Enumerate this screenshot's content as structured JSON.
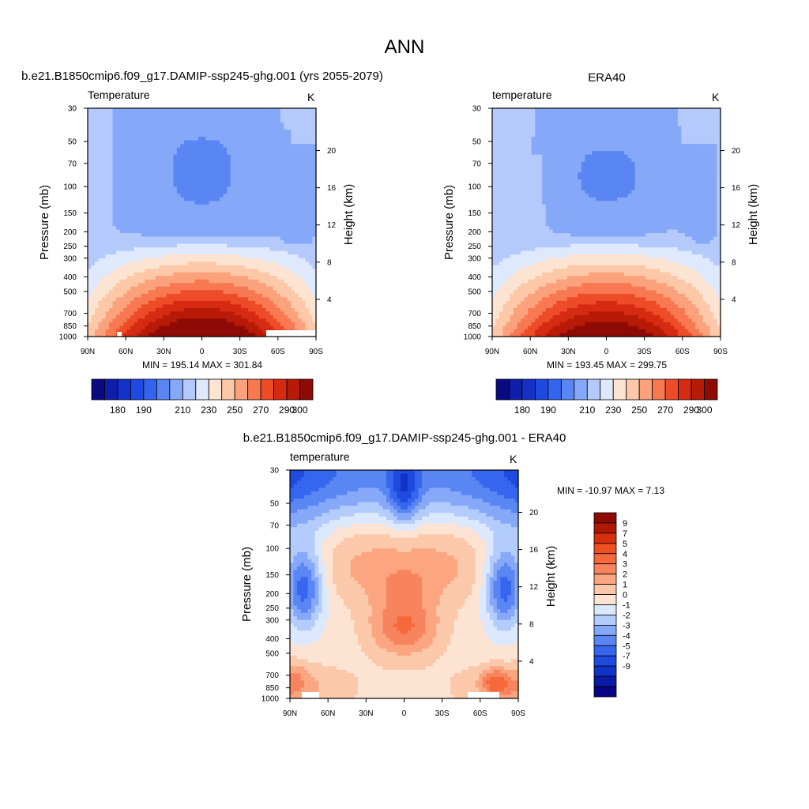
{
  "page": {
    "title": "ANN"
  },
  "colors": {
    "temperature_palette": [
      "#0a0a82",
      "#0e1ea8",
      "#1532c8",
      "#1e4ae0",
      "#3264ee",
      "#5a86f4",
      "#86a8f8",
      "#b4cafc",
      "#dfe9fd",
      "#fde4d2",
      "#fcc8a8",
      "#fba27c",
      "#f87852",
      "#ee4c28",
      "#d62a12",
      "#b81a08",
      "#8e0a04"
    ],
    "difference_palette": [
      "#060684",
      "#0a1aa4",
      "#1032c6",
      "#1e4ae0",
      "#3666ee",
      "#5a86f4",
      "#86a8f8",
      "#b4ccfc",
      "#dce8fd",
      "#fde4d2",
      "#fcc8aa",
      "#fba681",
      "#f8845e",
      "#f5693a",
      "#ee5020",
      "#d6300e",
      "#b01806",
      "#8e0a04"
    ]
  },
  "chart_data": [
    {
      "type": "heatmap",
      "name": "model",
      "title": "b.e21.B1850cmip6.f09_g17.DAMIP-ssp245-ghg.001 (yrs 2055-2079)",
      "left_label": "Temperature",
      "right_label": "K",
      "ylabel": "Pressure (mb)",
      "y2label": "Height (km)",
      "stats": "MIN = 195.14  MAX = 301.84",
      "min": 195.14,
      "max": 301.84,
      "x_ticks": [
        "90N",
        "60N",
        "30N",
        "0",
        "30S",
        "60S",
        "90S"
      ],
      "x_values": [
        90,
        60,
        30,
        0,
        -30,
        -60,
        -90
      ],
      "y_ticks": [
        "30",
        "50",
        "70",
        "100",
        "150",
        "200",
        "250",
        "300",
        "400",
        "500",
        "700",
        "850",
        "1000"
      ],
      "y_values": [
        30,
        50,
        70,
        100,
        150,
        200,
        250,
        300,
        400,
        500,
        700,
        850,
        1000
      ],
      "y2_ticks": [
        "20",
        "16",
        "12",
        "8",
        "4"
      ],
      "y2_values": [
        20,
        16,
        12,
        8,
        4
      ],
      "colorbar": {
        "levels": [
          175,
          180,
          185,
          190,
          195,
          200,
          210,
          220,
          230,
          240,
          250,
          260,
          270,
          280,
          290,
          300
        ],
        "labels": [
          "180",
          "190",
          "210",
          "230",
          "250",
          "270",
          "290",
          "300"
        ],
        "label_levels": [
          180,
          190,
          210,
          230,
          250,
          270,
          290,
          300
        ]
      }
    },
    {
      "type": "heatmap",
      "name": "obs",
      "title": "ERA40",
      "left_label": "temperature",
      "right_label": "K",
      "ylabel": "Pressure (mb)",
      "y2label": "Height (km)",
      "stats": "MIN = 193.45  MAX = 299.75",
      "min": 193.45,
      "max": 299.75,
      "x_ticks": [
        "90N",
        "60N",
        "30N",
        "0",
        "30S",
        "60S",
        "90S"
      ],
      "x_values": [
        90,
        60,
        30,
        0,
        -30,
        -60,
        -90
      ],
      "y_ticks": [
        "30",
        "50",
        "70",
        "100",
        "150",
        "200",
        "250",
        "300",
        "400",
        "500",
        "700",
        "850",
        "1000"
      ],
      "y_values": [
        30,
        50,
        70,
        100,
        150,
        200,
        250,
        300,
        400,
        500,
        700,
        850,
        1000
      ],
      "y2_ticks": [
        "20",
        "16",
        "12",
        "8",
        "4"
      ],
      "y2_values": [
        20,
        16,
        12,
        8,
        4
      ],
      "colorbar": {
        "levels": [
          175,
          180,
          185,
          190,
          195,
          200,
          210,
          220,
          230,
          240,
          250,
          260,
          270,
          280,
          290,
          300
        ],
        "labels": [
          "180",
          "190",
          "210",
          "230",
          "250",
          "270",
          "290",
          "300"
        ],
        "label_levels": [
          180,
          190,
          210,
          230,
          250,
          270,
          290,
          300
        ]
      }
    },
    {
      "type": "heatmap",
      "name": "diff",
      "title": "b.e21.B1850cmip6.f09_g17.DAMIP-ssp245-ghg.001 - ERA40",
      "left_label": "temperature",
      "right_label": "K",
      "ylabel": "Pressure (mb)",
      "y2label": "Height (km)",
      "stats": "MIN = -10.97  MAX =   7.13",
      "min": -10.97,
      "max": 7.13,
      "x_ticks": [
        "90N",
        "60N",
        "30N",
        "0",
        "30S",
        "60S",
        "90S"
      ],
      "x_values": [
        90,
        60,
        30,
        0,
        -30,
        -60,
        -90
      ],
      "y_ticks": [
        "30",
        "50",
        "70",
        "100",
        "150",
        "200",
        "250",
        "300",
        "400",
        "500",
        "700",
        "850",
        "1000"
      ],
      "y_values": [
        30,
        50,
        70,
        100,
        150,
        200,
        250,
        300,
        400,
        500,
        700,
        850,
        1000
      ],
      "y2_ticks": [
        "20",
        "16",
        "12",
        "8",
        "4"
      ],
      "y2_values": [
        20,
        16,
        12,
        8,
        4
      ],
      "colorbar": {
        "levels": [
          -9,
          -7,
          -5,
          -4,
          -3,
          -2,
          -1,
          0,
          1,
          2,
          3,
          4,
          5,
          7,
          9
        ],
        "labels": [
          "9",
          "7",
          "5",
          "4",
          "3",
          "2",
          "1",
          "0",
          "-1",
          "-2",
          "-3",
          "-4",
          "-5",
          "-7",
          "-9"
        ]
      }
    }
  ]
}
